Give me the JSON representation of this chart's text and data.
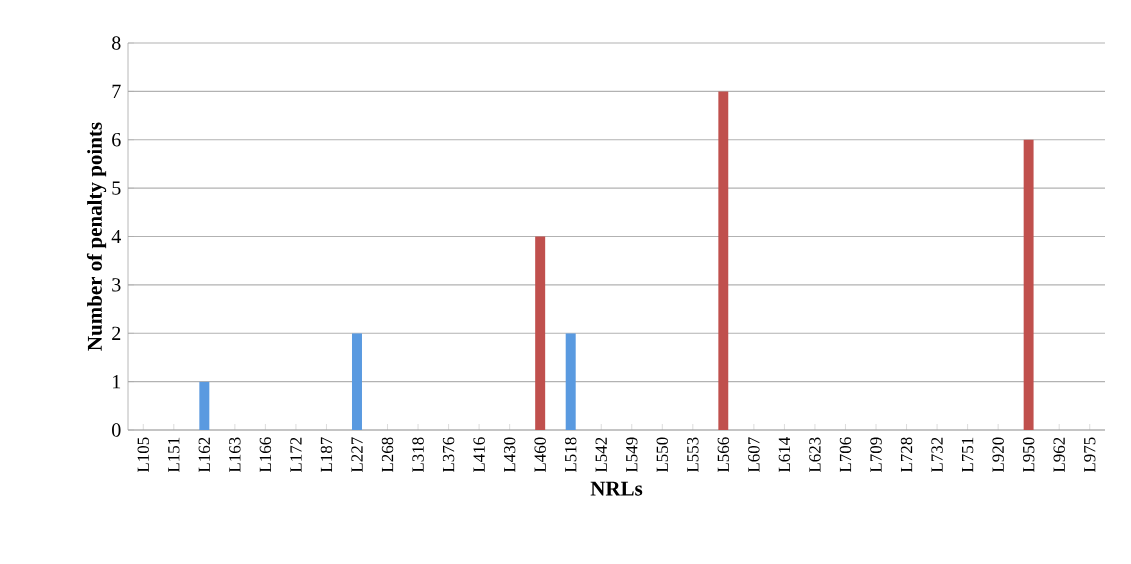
{
  "chart_data": {
    "type": "bar",
    "xlabel": "NRLs",
    "ylabel": "Number of penalty points",
    "categories": [
      "L105",
      "L151",
      "L162",
      "L163",
      "L166",
      "L172",
      "L187",
      "L227",
      "L268",
      "L318",
      "L376",
      "L416",
      "L430",
      "L460",
      "L518",
      "L542",
      "L549",
      "L550",
      "L553",
      "L566",
      "L607",
      "L614",
      "L623",
      "L706",
      "L709",
      "L728",
      "L732",
      "L751",
      "L920",
      "L950",
      "L962",
      "L975"
    ],
    "values": [
      0,
      0,
      1,
      0,
      0,
      0,
      0,
      2,
      0,
      0,
      0,
      0,
      0,
      4,
      2,
      0,
      0,
      0,
      0,
      7,
      0,
      0,
      0,
      0,
      0,
      0,
      0,
      0,
      0,
      6,
      0,
      0
    ],
    "colors": [
      "#5a9ae0",
      "#5a9ae0",
      "#5a9ae0",
      "#5a9ae0",
      "#5a9ae0",
      "#5a9ae0",
      "#5a9ae0",
      "#5a9ae0",
      "#5a9ae0",
      "#5a9ae0",
      "#5a9ae0",
      "#5a9ae0",
      "#5a9ae0",
      "#c0504d",
      "#5a9ae0",
      "#5a9ae0",
      "#5a9ae0",
      "#5a9ae0",
      "#5a9ae0",
      "#c0504d",
      "#5a9ae0",
      "#5a9ae0",
      "#5a9ae0",
      "#5a9ae0",
      "#5a9ae0",
      "#5a9ae0",
      "#5a9ae0",
      "#5a9ae0",
      "#5a9ae0",
      "#c0504d",
      "#5a9ae0",
      "#5a9ae0"
    ],
    "ylim": [
      0,
      8
    ],
    "yticks": [
      0,
      1,
      2,
      3,
      4,
      5,
      6,
      7,
      8
    ],
    "grid": "y"
  }
}
